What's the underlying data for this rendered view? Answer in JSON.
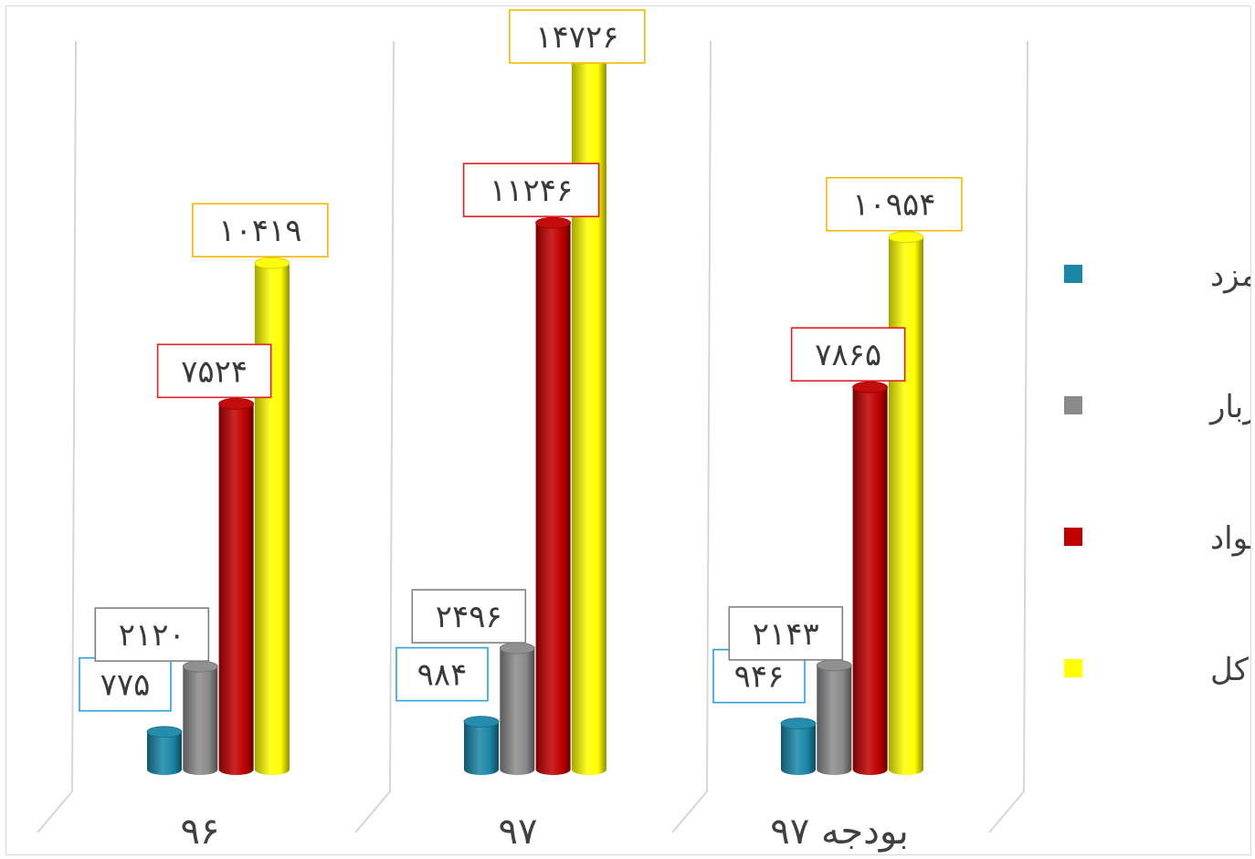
{
  "chart_data": {
    "type": "bar",
    "title": "",
    "xlabel": "",
    "ylabel": "",
    "categories": [
      "۹۶",
      "۹۷",
      "بودجه ۹۷"
    ],
    "series": [
      {
        "name": "دستمزد",
        "color": "#1a86a8",
        "values": [
          775,
          984,
          946
        ],
        "labels": [
          "۷۷۵",
          "۹۸۴",
          "۹۴۶"
        ]
      },
      {
        "name": "سربار",
        "color": "#8a8a8a",
        "values": [
          2120,
          2496,
          2143
        ],
        "labels": [
          "۲۱۲۰",
          "۲۴۹۶",
          "۲۱۴۳"
        ]
      },
      {
        "name": "مواد",
        "color": "#c00000",
        "values": [
          7524,
          11246,
          7865
        ],
        "labels": [
          "۷۵۲۴",
          "۱۱۲۴۶",
          "۷۸۶۵"
        ]
      },
      {
        "name": "بهای کل",
        "color": "#ffff00",
        "values": [
          10419,
          14726,
          10954
        ],
        "labels": [
          "۱۰۴۱۹",
          "۱۴۷۲۶",
          "۱۰۹۵۴"
        ]
      }
    ],
    "label_border_colors": [
      "#29a3e0",
      "#808080",
      "#e02020",
      "#f5b800"
    ],
    "grid": false,
    "legend": "right",
    "bar_shape": "cylinder"
  }
}
